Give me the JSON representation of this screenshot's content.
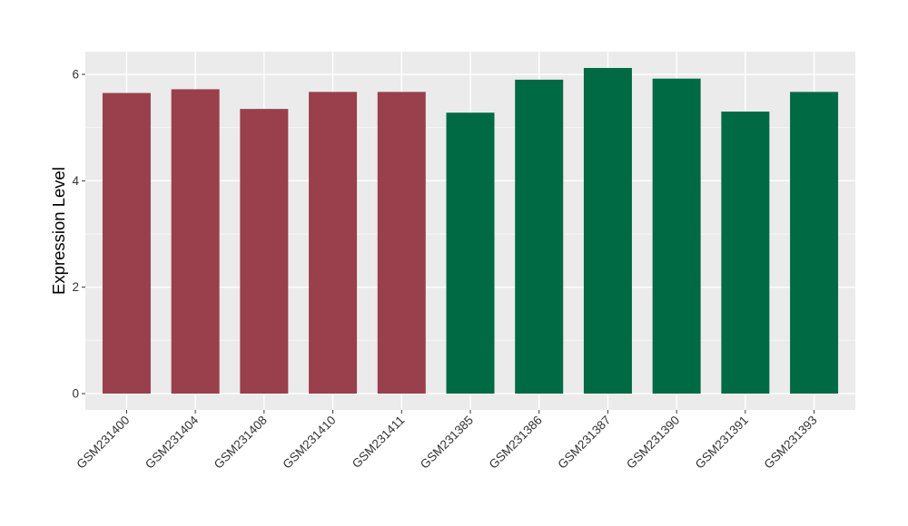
{
  "chart_data": {
    "type": "bar",
    "title": "",
    "xlabel": "",
    "ylabel": "Expression Level",
    "ylim": [
      -0.3,
      6.4
    ],
    "yticks": [
      0,
      2,
      4,
      6
    ],
    "grid": true,
    "legend": "none",
    "background": "#EBEBEB",
    "categories": [
      "GSM231400",
      "GSM231404",
      "GSM231408",
      "GSM231410",
      "GSM231411",
      "GSM231385",
      "GSM231386",
      "GSM231387",
      "GSM231390",
      "GSM231391",
      "GSM231393"
    ],
    "values": [
      5.65,
      5.72,
      5.35,
      5.67,
      5.67,
      5.28,
      5.9,
      6.12,
      5.92,
      5.3,
      5.67
    ],
    "groups": [
      0,
      0,
      0,
      0,
      0,
      1,
      1,
      1,
      1,
      1,
      1
    ],
    "group_colors": [
      "#99404C",
      "#006A45"
    ]
  }
}
